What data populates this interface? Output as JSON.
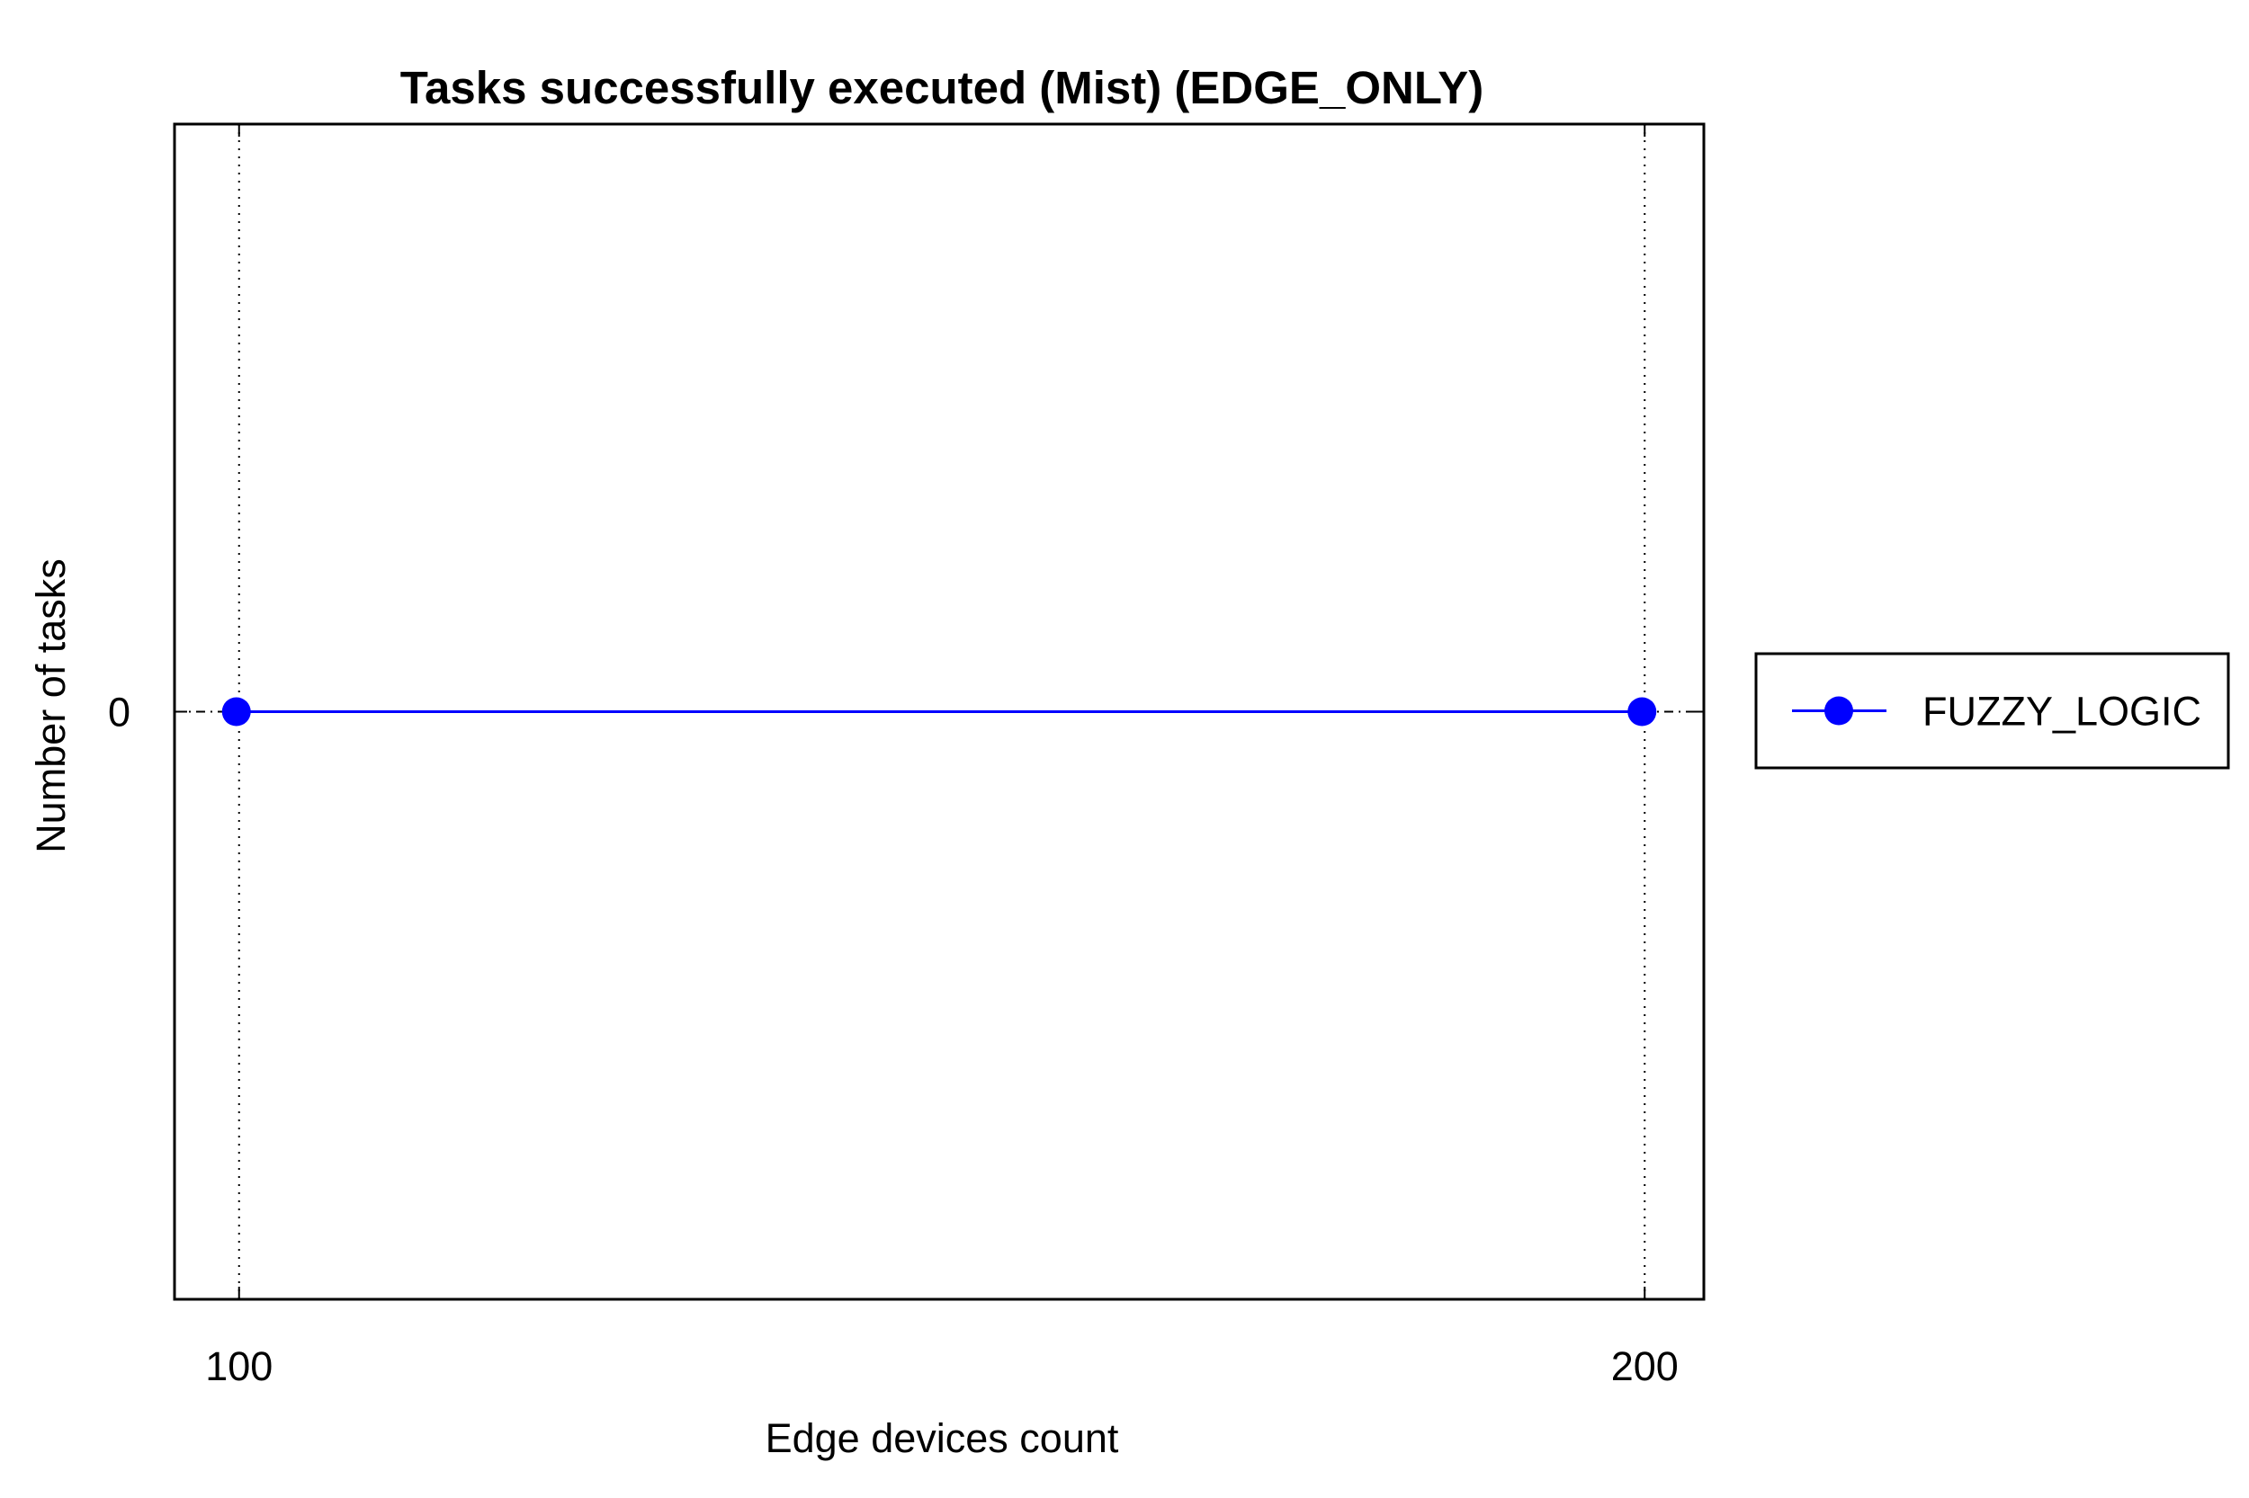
{
  "chart_data": {
    "type": "line",
    "title": "Tasks successfully executed (Mist) (EDGE_ONLY)",
    "xlabel": "Edge devices count",
    "ylabel": "Number of tasks",
    "x": [
      100,
      200
    ],
    "xticks": [
      "100",
      "200"
    ],
    "yticks": [
      "0"
    ],
    "xlim": [
      95.6,
      204.4
    ],
    "ylim": [
      -1,
      1
    ],
    "grid": "vertical dotted",
    "legend_position": "right",
    "series": [
      {
        "name": "FUZZY_LOGIC",
        "color": "#0000ff",
        "marker": "circle",
        "values": [
          0,
          0
        ]
      }
    ]
  }
}
